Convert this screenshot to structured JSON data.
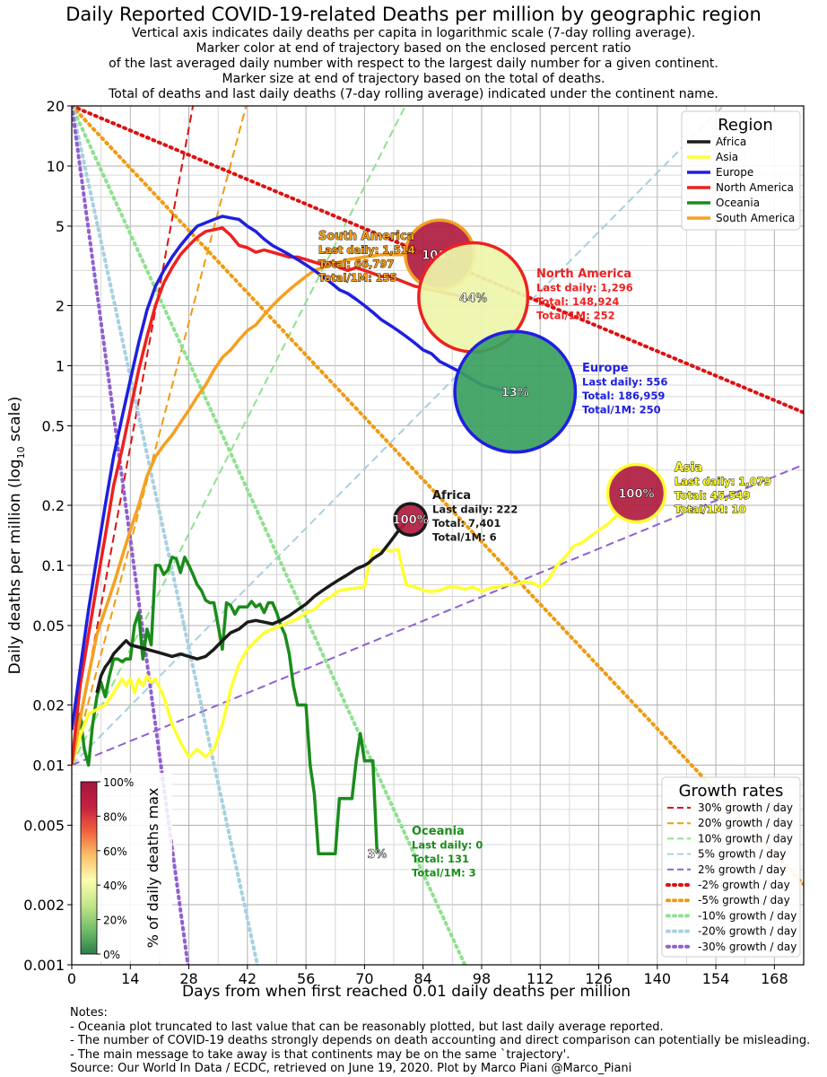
{
  "title": "Daily Reported COVID-19-related Deaths per million by geographic region",
  "subtitle_lines": [
    "Vertical axis indicates daily deaths per capita in logarithmic scale (7-day rolling average).",
    "Marker color at end of trajectory based on the enclosed percent ratio",
    "of the last averaged daily number with respect to the largest daily number for a given continent.",
    "Marker size at end of trajectory based on the total of deaths.",
    "Total of deaths and last daily deaths (7-day rolling average) indicated under the continent name."
  ],
  "notes": [
    "Notes:",
    "- Oceania plot truncated to last value that can be reasonably plotted, but last daily average reported.",
    "- The number of COVID-19 deaths strongly depends on death accounting and direct comparison can potentially be misleading.",
    "- The main message to take away is that continents may be on the same `trajectory'.",
    "Source: Our World In Data / ECDC, retrieved on June 19, 2020. Plot by Marco Piani @Marco_Piani"
  ],
  "chart_data": {
    "type": "line",
    "yscale": "log10",
    "xlabel": "Days from when first reached 0.01 daily deaths per million",
    "ylabel": "Daily deaths per million (log",
    "ylabel_sub": "10",
    "ylabel_end": " scale)",
    "xlim": [
      0,
      175
    ],
    "ylim": [
      0.001,
      20
    ],
    "xticks": [
      0,
      14,
      28,
      42,
      56,
      70,
      84,
      98,
      112,
      126,
      140,
      154,
      168
    ],
    "yticks": [
      0.001,
      0.002,
      0.005,
      0.01,
      0.02,
      0.05,
      0.1,
      0.2,
      0.5,
      1,
      2,
      5,
      10,
      20
    ],
    "ytick_labels": [
      "0.001",
      "0.002",
      "0.005",
      "0.01",
      "0.02",
      "0.05",
      "0.1",
      "0.2",
      "0.5",
      "1",
      "2",
      "5",
      "10",
      "20"
    ],
    "legend_region": {
      "title": "Region",
      "entries": [
        {
          "name": "Africa",
          "color": "#1a1a1a"
        },
        {
          "name": "Asia",
          "color": "#ffff33"
        },
        {
          "name": "Europe",
          "color": "#1f1fe0"
        },
        {
          "name": "North America",
          "color": "#ee2020"
        },
        {
          "name": "Oceania",
          "color": "#1a8c1a"
        },
        {
          "name": "South America",
          "color": "#f5a020"
        }
      ]
    },
    "series": [
      {
        "name": "Oceania",
        "color": "#1a8c1a",
        "x": [
          0,
          1,
          2,
          3,
          4,
          5,
          6,
          7,
          8,
          9,
          10,
          11,
          12,
          13,
          14,
          15,
          16,
          17,
          18,
          19,
          20,
          21,
          22,
          23,
          24,
          25,
          26,
          27,
          28,
          29,
          30,
          31,
          32,
          33,
          34,
          35,
          36,
          37,
          38,
          39,
          40,
          41,
          42,
          43,
          44,
          45,
          46,
          47,
          48,
          49,
          50,
          51,
          52,
          53,
          54,
          55,
          56,
          57,
          58,
          59,
          60,
          61,
          62,
          63,
          64,
          65,
          66,
          67,
          68,
          69,
          70,
          71,
          72,
          73
        ],
        "y": [
          0.01,
          0.014,
          0.018,
          0.012,
          0.01,
          0.016,
          0.022,
          0.026,
          0.022,
          0.028,
          0.034,
          0.034,
          0.033,
          0.034,
          0.034,
          0.05,
          0.058,
          0.034,
          0.048,
          0.04,
          0.1,
          0.1,
          0.09,
          0.095,
          0.11,
          0.108,
          0.092,
          0.11,
          0.1,
          0.09,
          0.08,
          0.075,
          0.067,
          0.065,
          0.065,
          0.05,
          0.038,
          0.065,
          0.063,
          0.057,
          0.062,
          0.062,
          0.062,
          0.066,
          0.062,
          0.064,
          0.058,
          0.065,
          0.065,
          0.058,
          0.05,
          0.045,
          0.036,
          0.025,
          0.02,
          0.02,
          0.02,
          0.01,
          0.0072,
          0.0036,
          0.0036,
          0.0036,
          0.0036,
          0.0036,
          0.0068,
          0.0068,
          0.0068,
          0.0068,
          0.0105,
          0.0144,
          0.0105,
          0.0105,
          0.0105,
          0.0036
        ]
      },
      {
        "name": "Asia",
        "color": "#ffff33",
        "x": [
          0,
          2,
          4,
          6,
          8,
          10,
          11,
          12,
          13,
          14,
          15,
          16,
          17,
          18,
          19,
          20,
          22,
          24,
          26,
          28,
          30,
          32,
          34,
          36,
          38,
          40,
          42,
          44,
          46,
          48,
          50,
          52,
          54,
          56,
          58,
          60,
          62,
          64,
          66,
          68,
          70,
          71,
          72,
          73,
          74,
          75,
          76,
          78,
          80,
          82,
          84,
          86,
          88,
          90,
          92,
          94,
          96,
          98,
          100,
          102,
          104,
          106,
          108,
          110,
          112,
          114,
          116,
          118,
          120,
          122,
          124,
          126,
          128,
          130,
          132,
          134,
          136
        ],
        "y": [
          0.01,
          0.014,
          0.018,
          0.019,
          0.02,
          0.023,
          0.025,
          0.027,
          0.025,
          0.027,
          0.023,
          0.027,
          0.025,
          0.028,
          0.026,
          0.027,
          0.022,
          0.016,
          0.013,
          0.011,
          0.012,
          0.011,
          0.012,
          0.016,
          0.024,
          0.032,
          0.038,
          0.042,
          0.046,
          0.048,
          0.05,
          0.052,
          0.054,
          0.058,
          0.06,
          0.066,
          0.07,
          0.075,
          0.076,
          0.077,
          0.078,
          0.1,
          0.12,
          0.12,
          0.118,
          0.12,
          0.118,
          0.12,
          0.08,
          0.078,
          0.075,
          0.074,
          0.075,
          0.078,
          0.078,
          0.076,
          0.078,
          0.074,
          0.077,
          0.078,
          0.08,
          0.08,
          0.083,
          0.082,
          0.078,
          0.085,
          0.1,
          0.11,
          0.125,
          0.13,
          0.14,
          0.15,
          0.16,
          0.175,
          0.19,
          0.205,
          0.23
        ]
      },
      {
        "name": "Africa",
        "color": "#1a1a1a",
        "x": [
          6,
          7,
          8,
          9,
          10,
          11,
          12,
          13,
          14,
          16,
          18,
          20,
          22,
          24,
          26,
          28,
          30,
          32,
          34,
          36,
          38,
          40,
          42,
          44,
          46,
          48,
          50,
          52,
          54,
          56,
          58,
          60,
          62,
          64,
          66,
          68,
          70,
          71,
          72,
          74,
          76,
          78,
          80,
          81
        ],
        "y": [
          0.023,
          0.028,
          0.031,
          0.033,
          0.036,
          0.038,
          0.04,
          0.042,
          0.04,
          0.039,
          0.038,
          0.037,
          0.036,
          0.035,
          0.036,
          0.035,
          0.034,
          0.035,
          0.038,
          0.042,
          0.046,
          0.048,
          0.052,
          0.053,
          0.052,
          0.051,
          0.053,
          0.056,
          0.06,
          0.064,
          0.07,
          0.075,
          0.08,
          0.085,
          0.09,
          0.096,
          0.1,
          0.103,
          0.108,
          0.115,
          0.13,
          0.148,
          0.165,
          0.175
        ]
      },
      {
        "name": "South America",
        "color": "#f5a020",
        "x": [
          0,
          2,
          4,
          6,
          8,
          10,
          12,
          14,
          16,
          18,
          20,
          22,
          24,
          26,
          28,
          30,
          32,
          34,
          36,
          38,
          40,
          42,
          44,
          46,
          48,
          50,
          52,
          54,
          56,
          58,
          60,
          62,
          64,
          66,
          68,
          70,
          72,
          74,
          76,
          78,
          80,
          82,
          84,
          86,
          88
        ],
        "y": [
          0.01,
          0.017,
          0.028,
          0.045,
          0.06,
          0.08,
          0.11,
          0.15,
          0.2,
          0.28,
          0.35,
          0.4,
          0.45,
          0.52,
          0.6,
          0.7,
          0.8,
          0.95,
          1.1,
          1.2,
          1.35,
          1.5,
          1.6,
          1.8,
          2.0,
          2.2,
          2.4,
          2.6,
          2.8,
          3.0,
          3.1,
          3.2,
          3.3,
          3.4,
          3.45,
          3.5,
          3.55,
          3.6,
          3.6,
          3.6,
          3.6,
          3.65,
          3.7,
          3.7,
          3.7
        ]
      },
      {
        "name": "North America",
        "color": "#ee2020",
        "x": [
          0,
          2,
          4,
          6,
          8,
          10,
          12,
          14,
          16,
          18,
          20,
          22,
          24,
          26,
          28,
          30,
          32,
          34,
          36,
          38,
          40,
          42,
          44,
          46,
          48,
          50,
          52,
          54,
          56,
          58,
          60,
          62,
          64,
          66,
          68,
          70,
          72,
          74,
          76,
          78,
          80,
          82,
          84,
          86,
          88,
          90,
          92,
          94,
          96
        ],
        "y": [
          0.01,
          0.025,
          0.045,
          0.08,
          0.14,
          0.25,
          0.38,
          0.6,
          0.95,
          1.4,
          2.0,
          2.6,
          3.1,
          3.6,
          4.0,
          4.4,
          4.7,
          4.8,
          4.9,
          4.5,
          4.0,
          3.9,
          3.7,
          3.8,
          3.7,
          3.6,
          3.5,
          3.5,
          3.4,
          3.3,
          3.2,
          3.3,
          3.1,
          3.0,
          3.1,
          3.0,
          2.9,
          2.8,
          2.8,
          2.7,
          2.6,
          2.5,
          2.45,
          2.4,
          2.35,
          2.3,
          2.25,
          2.2,
          2.2
        ]
      },
      {
        "name": "Europe",
        "color": "#1f1fe0",
        "x": [
          0,
          2,
          4,
          6,
          8,
          10,
          12,
          14,
          16,
          18,
          20,
          22,
          24,
          26,
          28,
          30,
          32,
          34,
          36,
          38,
          40,
          42,
          44,
          46,
          48,
          50,
          52,
          54,
          56,
          58,
          60,
          62,
          64,
          66,
          68,
          70,
          72,
          74,
          76,
          78,
          80,
          82,
          84,
          86,
          88,
          90,
          92,
          94,
          96,
          98,
          100,
          102,
          104,
          106
        ],
        "y": [
          0.015,
          0.03,
          0.06,
          0.11,
          0.2,
          0.35,
          0.55,
          0.85,
          1.3,
          1.9,
          2.5,
          3.0,
          3.5,
          4.0,
          4.5,
          5.0,
          5.2,
          5.4,
          5.6,
          5.5,
          5.4,
          5.0,
          4.7,
          4.3,
          4.0,
          3.8,
          3.6,
          3.4,
          3.2,
          3.0,
          2.8,
          2.6,
          2.4,
          2.3,
          2.15,
          2.0,
          1.85,
          1.7,
          1.6,
          1.5,
          1.4,
          1.3,
          1.2,
          1.15,
          1.05,
          1.0,
          0.95,
          0.9,
          0.85,
          0.8,
          0.78,
          0.76,
          0.75,
          0.74
        ]
      }
    ],
    "end_markers": [
      {
        "name": "Africa",
        "x": 81,
        "y": 0.17,
        "pct": 100,
        "label": "100%",
        "fill": "#b01c40",
        "edge": "#1a1a1a",
        "radius_scale": 0.55
      },
      {
        "name": "Asia",
        "x": 135,
        "y": 0.23,
        "pct": 100,
        "label": "100%",
        "fill": "#b01c40",
        "edge": "#ffff33",
        "radius_scale": 1.0
      },
      {
        "name": "South America",
        "x": 88,
        "y": 3.6,
        "pct": 100,
        "label": "100%",
        "fill": "#b01c40",
        "edge": "#f5a020",
        "radius_scale": 1.2
      },
      {
        "name": "North America",
        "x": 96,
        "y": 2.2,
        "pct": 44,
        "label": "44%",
        "fill": "#eef5aa",
        "edge": "#ee2020",
        "radius_scale": 1.9
      },
      {
        "name": "Europe",
        "x": 106,
        "y": 0.74,
        "pct": 13,
        "label": "13%",
        "fill": "#3aa060",
        "edge": "#1f1fe0",
        "radius_scale": 2.1
      },
      {
        "name": "Oceania",
        "x": 73,
        "y": 0.0036,
        "pct": 3,
        "label": "3%",
        "fill": "#1a8c1a",
        "edge": "#1a8c1a",
        "radius_scale": 0.0
      }
    ],
    "annotations": [
      {
        "name": "South America",
        "color": "#f5a020",
        "outline": true,
        "lines": [
          "South America",
          "Last daily: 1,514",
          "Total: 66,797",
          "Total/1M: 155"
        ]
      },
      {
        "name": "North America",
        "color": "#ee2020",
        "outline": false,
        "lines": [
          "North America",
          "Last daily: 1,296",
          "Total: 148,924",
          "Total/1M: 252"
        ]
      },
      {
        "name": "Europe",
        "color": "#1f1fe0",
        "outline": false,
        "lines": [
          "Europe",
          "Last daily: 556",
          "Total: 186,959",
          "Total/1M: 250"
        ]
      },
      {
        "name": "Asia",
        "color": "#ffff33",
        "outline": true,
        "lines": [
          "Asia",
          "Last daily: 1,079",
          "Total: 45,549",
          "Total/1M: 10"
        ]
      },
      {
        "name": "Africa",
        "color": "#1a1a1a",
        "outline": false,
        "lines": [
          "Africa",
          "Last daily: 222",
          "Total: 7,401",
          "Total/1M: 6"
        ]
      },
      {
        "name": "Oceania",
        "color": "#1a8c1a",
        "outline": false,
        "lines": [
          "Oceania",
          "Last daily: 0",
          "Total: 131",
          "Total/1M: 3"
        ]
      }
    ],
    "growth_lines": [
      {
        "label": "30% growth / day",
        "rate": 0.3,
        "origin": 0.01,
        "color": "#dd1111",
        "style": "dashed"
      },
      {
        "label": "20% growth / day",
        "rate": 0.2,
        "origin": 0.01,
        "color": "#f09a10",
        "style": "dashed"
      },
      {
        "label": "10% growth / day",
        "rate": 0.1,
        "origin": 0.01,
        "color": "#90e090",
        "style": "dashed"
      },
      {
        "label": "5% growth / day",
        "rate": 0.05,
        "origin": 0.01,
        "color": "#a8d0e0",
        "style": "dashed"
      },
      {
        "label": "2% growth / day",
        "rate": 0.02,
        "origin": 0.01,
        "color": "#9060d0",
        "style": "dashed"
      },
      {
        "label": "-2% growth / day",
        "rate": -0.02,
        "origin": 20,
        "color": "#dd1111",
        "style": "dotted"
      },
      {
        "label": "-5% growth / day",
        "rate": -0.05,
        "origin": 20,
        "color": "#f09a10",
        "style": "dotted"
      },
      {
        "label": "-10% growth / day",
        "rate": -0.1,
        "origin": 20,
        "color": "#90e090",
        "style": "dotted"
      },
      {
        "label": "-20% growth / day",
        "rate": -0.2,
        "origin": 20,
        "color": "#a8d0e0",
        "style": "dotted"
      },
      {
        "label": "-30% growth / day",
        "rate": -0.3,
        "origin": 20,
        "color": "#9060d0",
        "style": "dotted"
      }
    ],
    "legend_growth_title": "Growth rates",
    "colorbar": {
      "label": "% of daily deaths max",
      "ticks": [
        "0%",
        "20%",
        "40%",
        "60%",
        "80%",
        "100%"
      ],
      "colors": [
        "#2e7d4a",
        "#72bf6a",
        "#c4e68c",
        "#fdfcb0",
        "#fdc06a",
        "#f0603e",
        "#c42040",
        "#a0183c"
      ]
    }
  }
}
